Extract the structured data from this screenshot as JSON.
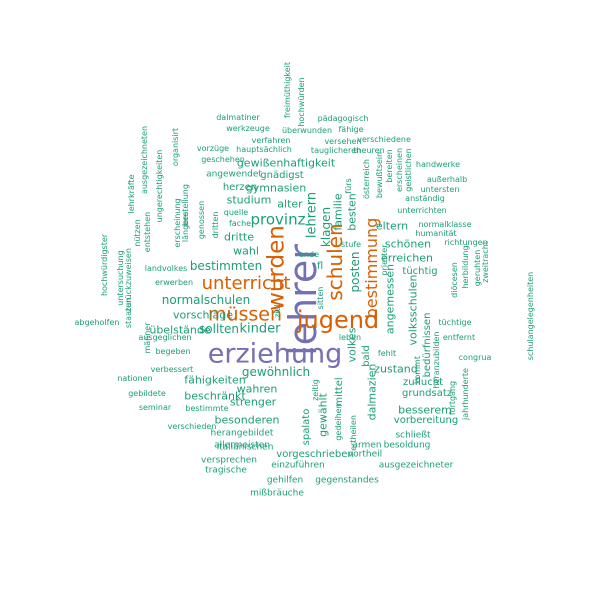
{
  "colors": {
    "teal": "#1b9e77",
    "orange": "#d95f02",
    "purple": "#7570b3"
  },
  "words": [
    {
      "text": "lehrer",
      "color": "purple"
    },
    {
      "text": "erziehung",
      "color": "purple"
    },
    {
      "text": "jugend",
      "color": "orange"
    },
    {
      "text": "wurden",
      "color": "orange"
    },
    {
      "text": "schulen",
      "color": "orange"
    },
    {
      "text": "müssen",
      "color": "orange"
    },
    {
      "text": "unterricht",
      "color": "orange"
    },
    {
      "text": "bestimmung",
      "color": "orange"
    },
    {
      "text": "provinz",
      "color": "teal"
    },
    {
      "text": "normalschulen",
      "color": "teal"
    },
    {
      "text": "sollten",
      "color": "teal"
    },
    {
      "text": "kinder",
      "color": "teal"
    },
    {
      "text": "bestimmten",
      "color": "teal"
    },
    {
      "text": "vorschläge",
      "color": "teal"
    },
    {
      "text": "übelstände",
      "color": "teal"
    },
    {
      "text": "gewöhnlich",
      "color": "teal"
    },
    {
      "text": "fähigkeiten",
      "color": "teal"
    },
    {
      "text": "beschränkt",
      "color": "teal"
    },
    {
      "text": "wahren",
      "color": "teal"
    },
    {
      "text": "strenger",
      "color": "teal"
    },
    {
      "text": "besonderen",
      "color": "teal"
    },
    {
      "text": "wahl",
      "color": "teal"
    },
    {
      "text": "dritte",
      "color": "teal"
    },
    {
      "text": "studium",
      "color": "teal"
    },
    {
      "text": "gymnasien",
      "color": "teal"
    },
    {
      "text": "gnädigst",
      "color": "teal"
    },
    {
      "text": "alter",
      "color": "teal"
    },
    {
      "text": "herzen",
      "color": "teal"
    },
    {
      "text": "angewendet",
      "color": "teal"
    },
    {
      "text": "gewißenhaftigkeit",
      "color": "teal"
    },
    {
      "text": "lehrern",
      "color": "teal"
    },
    {
      "text": "klagen",
      "color": "teal"
    },
    {
      "text": "familie",
      "color": "teal"
    },
    {
      "text": "besten",
      "color": "teal"
    },
    {
      "text": "posten",
      "color": "teal"
    },
    {
      "text": "eltern",
      "color": "teal"
    },
    {
      "text": "schönen",
      "color": "teal"
    },
    {
      "text": "erreichen",
      "color": "teal"
    },
    {
      "text": "tüchtig",
      "color": "teal"
    },
    {
      "text": "volksschulen",
      "color": "teal"
    },
    {
      "text": "angemessen",
      "color": "teal"
    },
    {
      "text": "volkes",
      "color": "teal"
    },
    {
      "text": "zustand",
      "color": "teal"
    },
    {
      "text": "bald",
      "color": "teal"
    },
    {
      "text": "dalmazien",
      "color": "teal"
    },
    {
      "text": "bedürfnissen",
      "color": "teal"
    },
    {
      "text": "besserem",
      "color": "teal"
    },
    {
      "text": "zuflucht",
      "color": "teal"
    },
    {
      "text": "grundsatz",
      "color": "teal"
    },
    {
      "text": "vorbereitung",
      "color": "teal"
    },
    {
      "text": "mittel",
      "color": "teal"
    },
    {
      "text": "gewählt",
      "color": "teal"
    },
    {
      "text": "spalato",
      "color": "teal"
    },
    {
      "text": "vorgeschrieben",
      "color": "teal"
    },
    {
      "text": "einzuführen",
      "color": "teal"
    },
    {
      "text": "versprechen",
      "color": "teal"
    },
    {
      "text": "tragische",
      "color": "teal"
    },
    {
      "text": "gehilfen",
      "color": "teal"
    },
    {
      "text": "mißbräuche",
      "color": "teal"
    },
    {
      "text": "gegenstandes",
      "color": "teal"
    },
    {
      "text": "ausgezeichneter",
      "color": "teal"
    },
    {
      "text": "vortheil",
      "color": "teal"
    },
    {
      "text": "armen",
      "color": "teal"
    },
    {
      "text": "besoldung",
      "color": "teal"
    },
    {
      "text": "schließt",
      "color": "teal"
    },
    {
      "text": "herangebildet",
      "color": "teal"
    },
    {
      "text": "allermeisten",
      "color": "teal"
    },
    {
      "text": "italiänischen",
      "color": "teal"
    },
    {
      "text": "verschieden",
      "color": "teal"
    },
    {
      "text": "seminar",
      "color": "teal"
    },
    {
      "text": "bestimmte",
      "color": "teal"
    },
    {
      "text": "gebildete",
      "color": "teal"
    },
    {
      "text": "nationen",
      "color": "teal"
    },
    {
      "text": "verbessert",
      "color": "teal"
    },
    {
      "text": "begeben",
      "color": "teal"
    },
    {
      "text": "ausgeglichen",
      "color": "teal"
    },
    {
      "text": "erwerben",
      "color": "teal"
    },
    {
      "text": "landvolkes",
      "color": "teal"
    },
    {
      "text": "abgeholfen",
      "color": "teal"
    },
    {
      "text": "dalmatiner",
      "color": "teal"
    },
    {
      "text": "werkzeuge",
      "color": "teal"
    },
    {
      "text": "verfahren",
      "color": "teal"
    },
    {
      "text": "vorzüge",
      "color": "teal"
    },
    {
      "text": "hauptsächlich",
      "color": "teal"
    },
    {
      "text": "geschehen",
      "color": "teal"
    },
    {
      "text": "pädagogisch",
      "color": "teal"
    },
    {
      "text": "überwunden",
      "color": "teal"
    },
    {
      "text": "fähige",
      "color": "teal"
    },
    {
      "text": "versehen",
      "color": "teal"
    },
    {
      "text": "verschiedene",
      "color": "teal"
    },
    {
      "text": "tauglicheren",
      "color": "teal"
    },
    {
      "text": "theuren",
      "color": "teal"
    },
    {
      "text": "handwerke",
      "color": "teal"
    },
    {
      "text": "außerhalb",
      "color": "teal"
    },
    {
      "text": "untersten",
      "color": "teal"
    },
    {
      "text": "anständig",
      "color": "teal"
    },
    {
      "text": "unterrichten",
      "color": "teal"
    },
    {
      "text": "normalklasse",
      "color": "teal"
    },
    {
      "text": "humanität",
      "color": "teal"
    },
    {
      "text": "richtungen",
      "color": "teal"
    },
    {
      "text": "tüchtige",
      "color": "teal"
    },
    {
      "text": "entfernt",
      "color": "teal"
    },
    {
      "text": "congrua",
      "color": "teal"
    },
    {
      "text": "quelle",
      "color": "teal"
    },
    {
      "text": "fache",
      "color": "teal"
    },
    {
      "text": "stufe",
      "color": "teal"
    },
    {
      "text": "ende",
      "color": "teal"
    },
    {
      "text": "leben",
      "color": "teal"
    },
    {
      "text": "fehlt",
      "color": "teal"
    },
    {
      "text": "fürs",
      "color": "teal"
    },
    {
      "text": "freimüthigkeit",
      "color": "teal"
    },
    {
      "text": "hochwürden",
      "color": "teal"
    },
    {
      "text": "ausgezeichneten",
      "color": "teal"
    },
    {
      "text": "lehrkräfte",
      "color": "teal"
    },
    {
      "text": "ungerechtigkeiten",
      "color": "teal"
    },
    {
      "text": "organisirt",
      "color": "teal"
    },
    {
      "text": "bestellung",
      "color": "teal"
    },
    {
      "text": "erscheinung",
      "color": "teal"
    },
    {
      "text": "längere",
      "color": "teal"
    },
    {
      "text": "genossen",
      "color": "teal"
    },
    {
      "text": "dritten",
      "color": "teal"
    },
    {
      "text": "hochwürdigster",
      "color": "teal"
    },
    {
      "text": "untersuchung",
      "color": "teal"
    },
    {
      "text": "zurückzuweisen",
      "color": "teal"
    },
    {
      "text": "staaten",
      "color": "teal"
    },
    {
      "text": "männer",
      "color": "teal"
    },
    {
      "text": "nützen",
      "color": "teal"
    },
    {
      "text": "entstehen",
      "color": "teal"
    },
    {
      "text": "österreich",
      "color": "teal"
    },
    {
      "text": "bewußtsein",
      "color": "teal"
    },
    {
      "text": "bereiten",
      "color": "teal"
    },
    {
      "text": "erscheinen",
      "color": "teal"
    },
    {
      "text": "geistlichen",
      "color": "teal"
    },
    {
      "text": "diöcesen",
      "color": "teal"
    },
    {
      "text": "herbildung",
      "color": "teal"
    },
    {
      "text": "geruhten",
      "color": "teal"
    },
    {
      "text": "zweitracht",
      "color": "teal"
    },
    {
      "text": "schulangelegenheiten",
      "color": "teal"
    },
    {
      "text": "fortgang",
      "color": "teal"
    },
    {
      "text": "jahrhunderte",
      "color": "teal"
    },
    {
      "text": "kommt",
      "color": "teal"
    },
    {
      "text": "heranzubilden",
      "color": "teal"
    },
    {
      "text": "priester",
      "color": "teal"
    },
    {
      "text": "sitten",
      "color": "teal"
    },
    {
      "text": "ziel",
      "color": "teal"
    },
    {
      "text": "zeitig",
      "color": "teal"
    },
    {
      "text": "gedeihen",
      "color": "teal"
    },
    {
      "text": "ertheilen",
      "color": "teal"
    },
    {
      "text": "fl",
      "color": "teal"
    }
  ]
}
